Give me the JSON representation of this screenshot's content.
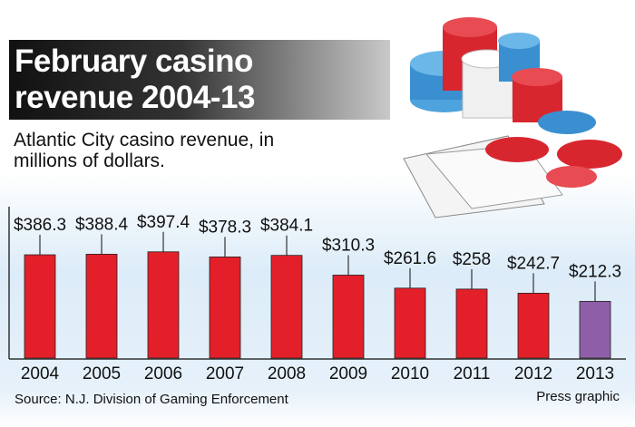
{
  "chart_data": {
    "type": "bar",
    "title": "February casino revenue 2004-13",
    "subtitle": "Atlantic City casino revenue, in millions of dollars.",
    "categories": [
      "2004",
      "2005",
      "2006",
      "2007",
      "2008",
      "2009",
      "2010",
      "2011",
      "2012",
      "2013"
    ],
    "values": [
      386.3,
      388.4,
      397.4,
      378.3,
      384.1,
      310.3,
      261.6,
      258,
      242.7,
      212.3
    ],
    "value_labels": [
      "$386.3",
      "$388.4",
      "$397.4",
      "$378.3",
      "$384.1",
      "$310.3",
      "$261.6",
      "$258",
      "$242.7",
      "$212.3"
    ],
    "colors": [
      "#e3202a",
      "#e3202a",
      "#e3202a",
      "#e3202a",
      "#e3202a",
      "#e3202a",
      "#e3202a",
      "#e3202a",
      "#e3202a",
      "#8e5fa8"
    ],
    "source": "Source: N.J. Division of Gaming Enforcement",
    "credit": "Press graphic"
  }
}
